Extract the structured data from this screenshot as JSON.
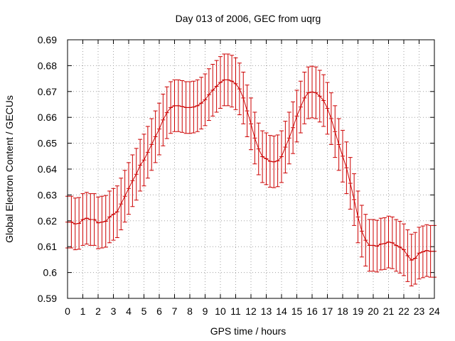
{
  "chart_data": {
    "type": "line",
    "title": "Day 013 of 2006, GEC from uqrg",
    "xlabel": "GPS time / hours",
    "ylabel": "Global Electron Content / GECUs",
    "xlim": [
      0,
      24
    ],
    "ylim": [
      0.59,
      0.69
    ],
    "xticks": [
      0,
      1,
      2,
      3,
      4,
      5,
      6,
      7,
      8,
      9,
      10,
      11,
      12,
      13,
      14,
      15,
      16,
      17,
      18,
      19,
      20,
      21,
      22,
      23,
      24
    ],
    "yticks": [
      0.59,
      0.6,
      0.61,
      0.62,
      0.63,
      0.64,
      0.65,
      0.66,
      0.67,
      0.68,
      0.69
    ],
    "xtick_labels": [
      "0",
      "1",
      "2",
      "3",
      "4",
      "5",
      "6",
      "7",
      "8",
      "9",
      "10",
      "11",
      "12",
      "13",
      "14",
      "15",
      "16",
      "17",
      "18",
      "19",
      "20",
      "21",
      "22",
      "23",
      "24"
    ],
    "ytick_labels": [
      "0.59",
      "0.6",
      "0.61",
      "0.62",
      "0.63",
      "0.64",
      "0.65",
      "0.66",
      "0.67",
      "0.68",
      "0.69"
    ],
    "grid": true,
    "legend": "none",
    "color": "#cc0000",
    "error": 0.01,
    "series": [
      {
        "x": [
          0,
          0.25,
          0.5,
          0.75,
          1,
          1.25,
          1.5,
          1.75,
          2,
          2.25,
          2.5,
          2.75,
          3,
          3.25,
          3.5,
          3.75,
          4,
          4.25,
          4.5,
          4.75,
          5,
          5.25,
          5.5,
          5.75,
          6,
          6.25,
          6.5,
          6.75,
          7,
          7.25,
          7.5,
          7.75,
          8,
          8.25,
          8.5,
          8.75,
          9,
          9.25,
          9.5,
          9.75,
          10,
          10.25,
          10.5,
          10.75,
          11,
          11.25,
          11.5,
          11.75,
          12,
          12.25,
          12.5,
          12.75,
          13,
          13.25,
          13.5,
          13.75,
          14,
          14.25,
          14.5,
          14.75,
          15,
          15.25,
          15.5,
          15.75,
          16,
          16.25,
          16.5,
          16.75,
          17,
          17.25,
          17.5,
          17.75,
          18,
          18.25,
          18.5,
          18.75,
          19,
          19.25,
          19.5,
          19.75,
          20,
          20.25,
          20.5,
          20.75,
          21,
          21.25,
          21.5,
          21.75,
          22,
          22.25,
          22.5,
          22.75,
          23,
          23.25,
          23.5,
          23.75,
          24
        ],
        "y": [
          0.6195,
          0.6195,
          0.6188,
          0.619,
          0.6205,
          0.621,
          0.6205,
          0.6205,
          0.6192,
          0.6195,
          0.6198,
          0.6215,
          0.6225,
          0.6235,
          0.6265,
          0.6295,
          0.6325,
          0.6355,
          0.638,
          0.6415,
          0.6435,
          0.6465,
          0.6495,
          0.6525,
          0.6555,
          0.659,
          0.6618,
          0.6638,
          0.6645,
          0.6645,
          0.6642,
          0.6638,
          0.6638,
          0.664,
          0.6645,
          0.6655,
          0.6668,
          0.6688,
          0.6705,
          0.672,
          0.6735,
          0.6745,
          0.6745,
          0.674,
          0.673,
          0.671,
          0.6675,
          0.6625,
          0.6575,
          0.652,
          0.6478,
          0.6448,
          0.644,
          0.643,
          0.6428,
          0.6432,
          0.6448,
          0.6485,
          0.652,
          0.656,
          0.6605,
          0.664,
          0.6675,
          0.6695,
          0.6698,
          0.6695,
          0.6682,
          0.6665,
          0.6635,
          0.6595,
          0.6545,
          0.6495,
          0.645,
          0.6405,
          0.6345,
          0.6282,
          0.6215,
          0.616,
          0.6125,
          0.6105,
          0.6105,
          0.6102,
          0.611,
          0.6112,
          0.6118,
          0.6115,
          0.6105,
          0.6098,
          0.6088,
          0.6065,
          0.6048,
          0.6055,
          0.6075,
          0.608,
          0.6085,
          0.6082,
          0.6082
        ]
      }
    ]
  }
}
